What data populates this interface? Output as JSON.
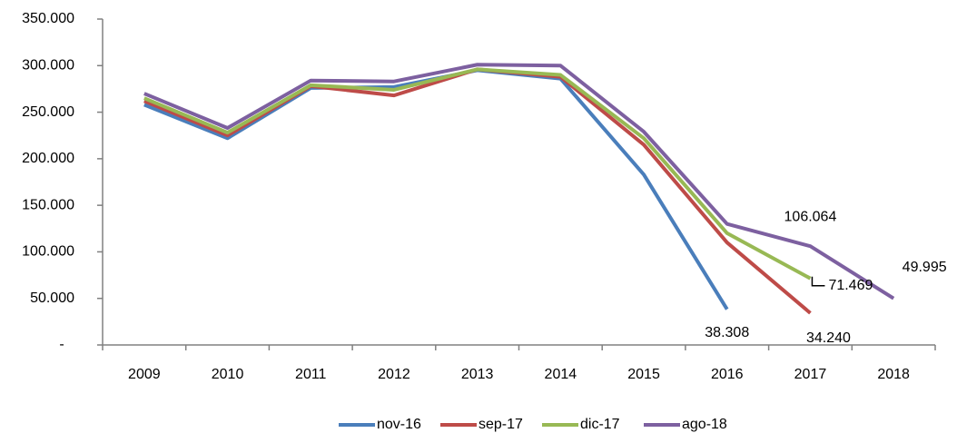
{
  "chart_data": {
    "type": "line",
    "categories": [
      "2009",
      "2010",
      "2011",
      "2012",
      "2013",
      "2014",
      "2015",
      "2016",
      "2017",
      "2018"
    ],
    "ylim": [
      0,
      350000
    ],
    "yticks": [
      {
        "value": 0,
        "label": "-"
      },
      {
        "value": 50000,
        "label": "50.000"
      },
      {
        "value": 100000,
        "label": "100.000"
      },
      {
        "value": 150000,
        "label": "150.000"
      },
      {
        "value": 200000,
        "label": "200.000"
      },
      {
        "value": 250000,
        "label": "250.000"
      },
      {
        "value": 300000,
        "label": "300.000"
      },
      {
        "value": 350000,
        "label": "350.000"
      }
    ],
    "legend": "bottom",
    "series": [
      {
        "name": "nov-16",
        "color": "#4a7ebb",
        "values": [
          258000,
          222000,
          276000,
          277000,
          295000,
          286000,
          183000,
          38308,
          null,
          null
        ],
        "value_labels": [
          null,
          null,
          null,
          null,
          null,
          null,
          null,
          "38.308",
          null,
          null
        ]
      },
      {
        "name": "sep-17",
        "color": "#be4b48",
        "values": [
          262000,
          225000,
          278000,
          268000,
          296000,
          288000,
          215000,
          110000,
          34240,
          null
        ],
        "value_labels": [
          null,
          null,
          null,
          null,
          null,
          null,
          null,
          null,
          "34.240",
          null
        ]
      },
      {
        "name": "dic-17",
        "color": "#98b954",
        "values": [
          265000,
          228000,
          279000,
          274000,
          296000,
          290000,
          222000,
          120000,
          71469,
          null
        ],
        "value_labels": [
          null,
          null,
          null,
          null,
          null,
          null,
          null,
          null,
          "71.469",
          null
        ]
      },
      {
        "name": "ago-18",
        "color": "#7d60a0",
        "values": [
          270000,
          233000,
          284000,
          283000,
          301000,
          300000,
          229000,
          130000,
          106064,
          49995
        ],
        "value_labels": [
          null,
          null,
          null,
          null,
          null,
          null,
          null,
          null,
          "106.064",
          "49.995"
        ]
      }
    ]
  }
}
